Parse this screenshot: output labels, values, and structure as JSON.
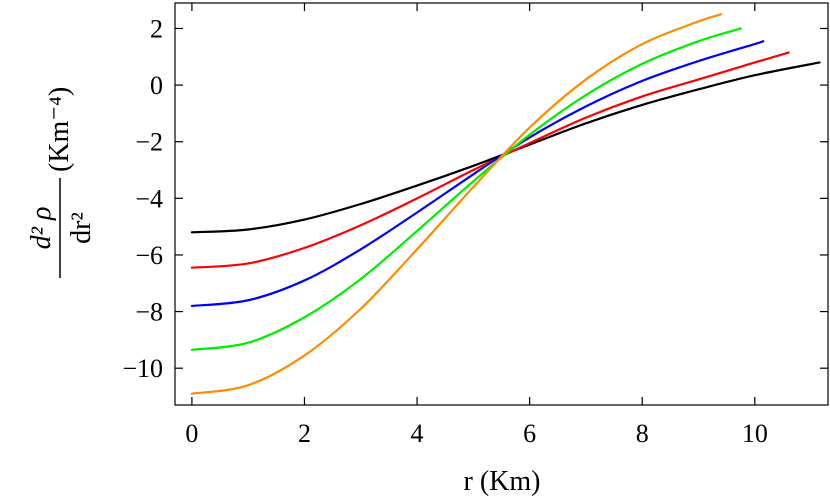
{
  "chart_data": {
    "type": "line",
    "title": "",
    "xlabel": "r (Km)",
    "ylabel": {
      "numerator": "d² ρ",
      "denominator": "dr²",
      "unit": "(Km⁻⁴)"
    },
    "xlim": [
      -0.3,
      11.3
    ],
    "ylim": [
      -11.3,
      2.9
    ],
    "xticks": [
      0,
      2,
      4,
      6,
      8,
      10
    ],
    "yticks": [
      2,
      0,
      -2,
      -4,
      -6,
      -8,
      -10
    ],
    "xtick_labels": [
      "0",
      "2",
      "4",
      "6",
      "8",
      "10"
    ],
    "ytick_labels": [
      "2",
      "0",
      "−2",
      "−4",
      "−6",
      "−8",
      "−10"
    ],
    "grid": false,
    "series": [
      {
        "color": "#000000",
        "x": [
          0,
          1,
          2,
          3,
          4,
          5,
          6,
          7,
          8,
          9,
          10,
          11.15
        ],
        "y": [
          -5.2,
          -5.1,
          -4.75,
          -4.2,
          -3.55,
          -2.85,
          -2.1,
          -1.35,
          -0.7,
          -0.15,
          0.35,
          0.8
        ]
      },
      {
        "color": "#ff0000",
        "x": [
          0,
          1,
          2,
          3,
          4,
          5,
          6,
          7,
          8,
          9,
          10,
          10.6
        ],
        "y": [
          -6.45,
          -6.3,
          -5.75,
          -4.95,
          -4.0,
          -3.0,
          -2.05,
          -1.15,
          -0.4,
          0.2,
          0.8,
          1.15
        ]
      },
      {
        "color": "#0000ff",
        "x": [
          0,
          1,
          2,
          3,
          4,
          5,
          6,
          7,
          8,
          9,
          10,
          10.15
        ],
        "y": [
          -7.8,
          -7.6,
          -6.9,
          -5.8,
          -4.5,
          -3.15,
          -1.85,
          -0.75,
          0.15,
          0.85,
          1.45,
          1.55
        ]
      },
      {
        "color": "#00ee00",
        "x": [
          0,
          1,
          2,
          3,
          4,
          5,
          6,
          7,
          8,
          9,
          9.75
        ],
        "y": [
          -9.35,
          -9.1,
          -8.2,
          -6.85,
          -5.15,
          -3.4,
          -1.75,
          -0.35,
          0.75,
          1.55,
          2.0
        ]
      },
      {
        "color": "#ff8c00",
        "x": [
          0,
          1,
          2,
          3,
          4,
          5,
          6,
          7,
          8,
          9,
          9.4
        ],
        "y": [
          -10.9,
          -10.6,
          -9.55,
          -7.9,
          -5.8,
          -3.6,
          -1.5,
          0.2,
          1.45,
          2.25,
          2.5
        ]
      }
    ]
  }
}
